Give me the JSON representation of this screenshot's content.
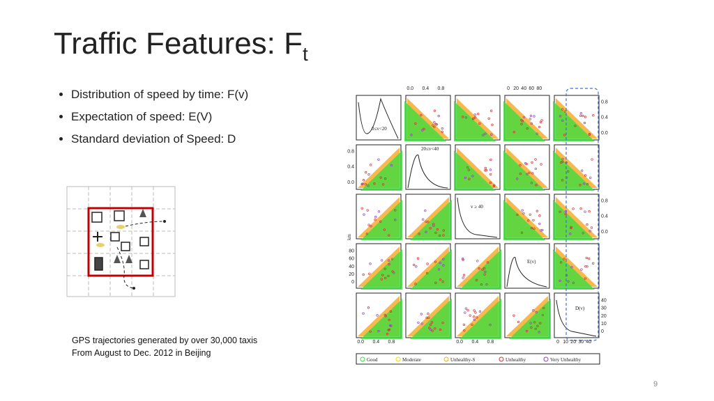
{
  "slide": {
    "title": "Traffic Features: F",
    "title_subscript": "t",
    "bullets": [
      "Distribution of speed by time: F(v)",
      "Expectation of speed: E(V)",
      "Standard deviation of Speed: D"
    ],
    "caption": [
      "GPS trajectories generated by over 30,000 taxis",
      "From August to Dec. 2012 in Beijing"
    ],
    "page_number": "9"
  },
  "matrix": {
    "diagonal_labels": [
      "0≤v<20",
      "20≤v<40",
      "v ≥ 40",
      "E(v)",
      "D(v)"
    ],
    "axis_unit": "km",
    "ticks": {
      "top": [
        [
          "0.0",
          "0.4",
          "0.8"
        ],
        [
          "0",
          "20",
          "40",
          "60",
          "80"
        ]
      ],
      "right": [
        [
          "0.0",
          "0.4",
          "0.8"
        ],
        [
          "0.0",
          "0.4",
          "0.8"
        ],
        [
          "0",
          "10",
          "20",
          "30",
          "40"
        ]
      ],
      "left": [
        [
          "0.0",
          "0.4",
          "0.8"
        ],
        [
          "0",
          "20",
          "40",
          "60",
          "80"
        ]
      ],
      "bottom": [
        [
          "0.0",
          "0.4",
          "0.8"
        ],
        [
          "0.0",
          "0.4",
          "0.8"
        ],
        [
          "0",
          "10",
          "20",
          "30",
          "40"
        ]
      ]
    },
    "legend": [
      "Good",
      "Moderate",
      "Unhealthy-S",
      "Unhealthy",
      "Very Unhealthy"
    ]
  }
}
